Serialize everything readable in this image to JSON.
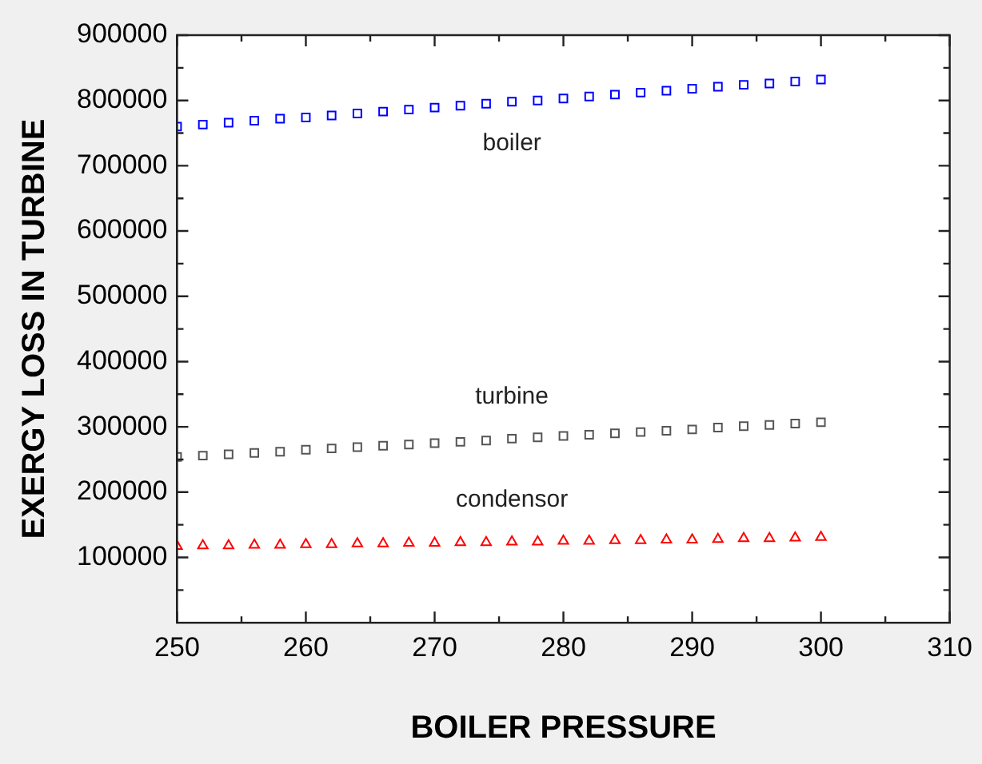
{
  "chart_data": {
    "type": "scatter",
    "xlabel": "BOILER PRESSURE",
    "ylabel": "EXERGY LOSS IN TURBINE",
    "x": [
      250,
      252,
      254,
      256,
      258,
      260,
      262,
      264,
      266,
      268,
      270,
      272,
      274,
      276,
      278,
      280,
      282,
      284,
      286,
      288,
      290,
      292,
      294,
      296,
      298,
      300
    ],
    "series": [
      {
        "name": "boiler",
        "color": "#0000ff",
        "marker": "square",
        "values": [
          760000,
          763000,
          766000,
          769000,
          772000,
          774000,
          777000,
          780000,
          783000,
          786000,
          789000,
          792000,
          795000,
          798000,
          800000,
          803000,
          806000,
          809000,
          812000,
          815000,
          818000,
          821000,
          824000,
          826000,
          829000,
          832000
        ]
      },
      {
        "name": "turbine",
        "color": "#555555",
        "marker": "square",
        "values": [
          254000,
          256000,
          258000,
          260000,
          262000,
          265000,
          267000,
          269000,
          271000,
          273000,
          275000,
          277000,
          279000,
          282000,
          284000,
          286000,
          288000,
          290000,
          292000,
          294000,
          296000,
          299000,
          301000,
          303000,
          305000,
          307000
        ]
      },
      {
        "name": "condensor",
        "color": "#ff0000",
        "marker": "triangle",
        "values": [
          117000,
          118000,
          118000,
          119000,
          119000,
          120000,
          120000,
          121000,
          121000,
          122000,
          122000,
          123000,
          123000,
          124000,
          124000,
          125000,
          125000,
          126000,
          126000,
          127000,
          127000,
          128000,
          129000,
          129000,
          130000,
          131000
        ]
      }
    ],
    "xlim": [
      250,
      310
    ],
    "xticks": [
      250,
      260,
      270,
      280,
      290,
      300,
      310
    ],
    "ylim": [
      0,
      900000
    ],
    "yticks": [
      100000,
      200000,
      300000,
      400000,
      500000,
      600000,
      700000,
      800000,
      900000
    ],
    "grid": false,
    "legend": false
  }
}
